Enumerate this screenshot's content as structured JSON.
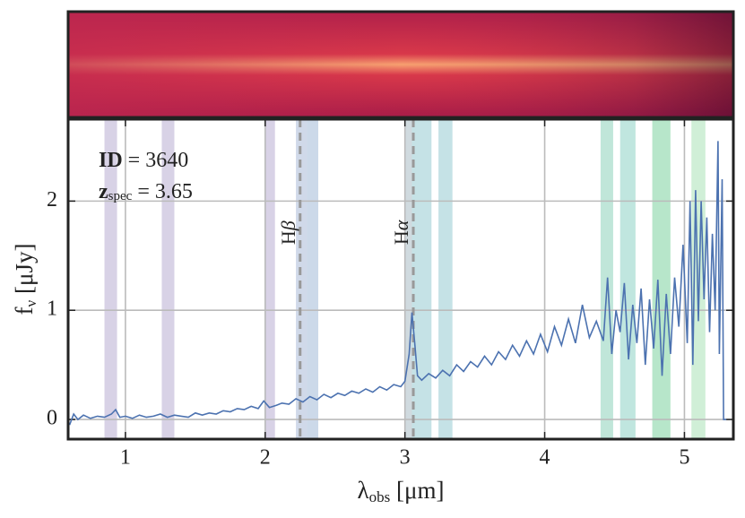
{
  "chart_data": {
    "type": "line",
    "xlabel": {
      "main": "λ",
      "sub": "obs",
      "unit": " [μm]"
    },
    "ylabel": {
      "main": "f",
      "sub": "ν",
      "unit": " [μJy]"
    },
    "info": [
      {
        "main": "ID",
        "sub": "",
        "rest": " = 3640"
      },
      {
        "main": "z",
        "sub": "spec",
        "rest": " = 3.65"
      }
    ],
    "xlim": [
      0.59,
      5.35
    ],
    "ylim": [
      -0.18,
      2.75
    ],
    "xticks": [
      1,
      2,
      3,
      4,
      5
    ],
    "yticks": [
      0,
      1,
      2
    ],
    "grid": true,
    "color": "#4c72b0",
    "x": [
      0.6,
      0.63,
      0.66,
      0.7,
      0.75,
      0.8,
      0.85,
      0.9,
      0.93,
      0.96,
      1.0,
      1.05,
      1.1,
      1.15,
      1.2,
      1.25,
      1.3,
      1.35,
      1.4,
      1.45,
      1.5,
      1.55,
      1.6,
      1.65,
      1.7,
      1.75,
      1.8,
      1.85,
      1.9,
      1.95,
      1.99,
      2.03,
      2.08,
      2.12,
      2.17,
      2.22,
      2.27,
      2.32,
      2.37,
      2.42,
      2.47,
      2.52,
      2.57,
      2.62,
      2.67,
      2.72,
      2.77,
      2.82,
      2.87,
      2.92,
      2.97,
      3.0,
      3.03,
      3.05,
      3.07,
      3.09,
      3.12,
      3.17,
      3.22,
      3.27,
      3.32,
      3.37,
      3.42,
      3.47,
      3.52,
      3.57,
      3.62,
      3.67,
      3.72,
      3.77,
      3.82,
      3.87,
      3.92,
      3.97,
      4.02,
      4.07,
      4.12,
      4.17,
      4.22,
      4.27,
      4.32,
      4.37,
      4.42,
      4.45,
      4.48,
      4.51,
      4.54,
      4.57,
      4.6,
      4.63,
      4.66,
      4.69,
      4.72,
      4.75,
      4.78,
      4.81,
      4.84,
      4.87,
      4.9,
      4.93,
      4.96,
      4.99,
      5.02,
      5.04,
      5.06,
      5.08,
      5.1,
      5.12,
      5.14,
      5.16,
      5.18,
      5.2,
      5.22,
      5.24,
      5.25,
      5.27,
      5.28,
      5.3
    ],
    "values": [
      -0.05,
      0.05,
      0.0,
      0.04,
      0.01,
      0.03,
      0.02,
      0.05,
      0.09,
      0.02,
      0.03,
      0.01,
      0.04,
      0.02,
      0.03,
      0.05,
      0.02,
      0.04,
      0.03,
      0.02,
      0.06,
      0.04,
      0.06,
      0.05,
      0.08,
      0.07,
      0.1,
      0.09,
      0.12,
      0.1,
      0.17,
      0.11,
      0.13,
      0.15,
      0.14,
      0.19,
      0.16,
      0.21,
      0.18,
      0.23,
      0.2,
      0.24,
      0.22,
      0.26,
      0.24,
      0.28,
      0.25,
      0.3,
      0.27,
      0.32,
      0.3,
      0.35,
      0.6,
      0.98,
      0.7,
      0.4,
      0.36,
      0.42,
      0.38,
      0.45,
      0.4,
      0.5,
      0.44,
      0.53,
      0.48,
      0.58,
      0.5,
      0.62,
      0.55,
      0.68,
      0.58,
      0.72,
      0.6,
      0.78,
      0.62,
      0.85,
      0.68,
      0.92,
      0.7,
      1.05,
      0.75,
      0.9,
      0.72,
      1.3,
      0.6,
      1.0,
      0.8,
      1.25,
      0.55,
      1.05,
      0.7,
      1.2,
      0.5,
      1.1,
      0.65,
      1.28,
      0.4,
      1.15,
      0.6,
      1.3,
      0.85,
      1.6,
      0.7,
      2.0,
      0.5,
      2.1,
      0.9,
      2.0,
      1.1,
      1.85,
      0.8,
      1.7,
      1.0,
      2.55,
      0.6,
      2.2,
      0.0,
      0.0
    ],
    "spans": [
      {
        "range": [
          0.85,
          0.94
        ],
        "color": "#9e8fc0"
      },
      {
        "range": [
          1.26,
          1.35
        ],
        "color": "#9e8fc0"
      },
      {
        "range": [
          2.0,
          2.07
        ],
        "color": "#9e8fc0"
      },
      {
        "range": [
          2.22,
          2.3
        ],
        "color": "#8a9fc8"
      },
      {
        "range": [
          2.3,
          2.38
        ],
        "color": "#7f9fc8"
      },
      {
        "range": [
          3.0,
          3.05
        ],
        "color": "#8aa3b0"
      },
      {
        "range": [
          3.05,
          3.19
        ],
        "color": "#6fb7c0"
      },
      {
        "range": [
          3.24,
          3.34
        ],
        "color": "#6fb7c0"
      },
      {
        "range": [
          4.4,
          4.49
        ],
        "color": "#62c0a0"
      },
      {
        "range": [
          4.54,
          4.65
        ],
        "color": "#62c0b0"
      },
      {
        "range": [
          4.77,
          4.9
        ],
        "color": "#4cc07a"
      },
      {
        "range": [
          5.05,
          5.15
        ],
        "color": "#8ad89a"
      }
    ],
    "lines": [
      {
        "main": "H",
        "greek": "β",
        "x": 2.25
      },
      {
        "main": "H",
        "greek": "α",
        "x": 3.06
      }
    ]
  }
}
